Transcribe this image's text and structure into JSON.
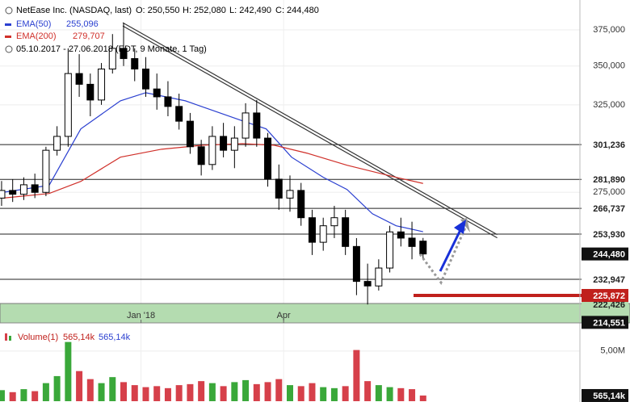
{
  "chart_data": [
    {
      "type": "candlestick",
      "title": "NetEase Inc. (NASDAQ, last)",
      "header_values": [
        "O: 250,550",
        "H: 252,080",
        "L: 242,490",
        "C: 244,480"
      ],
      "date_range": "05.10.2017 - 27.06.2018 (EDT, 9 Monate, 1 Tag)",
      "x": [
        0,
        7,
        14,
        21,
        28,
        35,
        42,
        49,
        56,
        63,
        70,
        77,
        84,
        91,
        98,
        105,
        112,
        119,
        126,
        133,
        140,
        147,
        154,
        161,
        168,
        175,
        182,
        189,
        196,
        203,
        210,
        217,
        224,
        231,
        238,
        245,
        252,
        259,
        266
      ],
      "open": [
        272000,
        276000,
        274000,
        279000,
        275000,
        298000,
        306000,
        345000,
        338000,
        328000,
        348000,
        362000,
        355000,
        348000,
        335000,
        330000,
        324000,
        315000,
        300000,
        290000,
        306000,
        298000,
        305000,
        320000,
        305000,
        282000,
        272000,
        276000,
        262000,
        250000,
        258000,
        262000,
        248000,
        232000,
        230000,
        238000,
        255000,
        252000,
        250550
      ],
      "high": [
        281000,
        282000,
        283000,
        285000,
        300000,
        312000,
        362000,
        358000,
        345000,
        352000,
        372000,
        380000,
        362000,
        356000,
        345000,
        340000,
        332000,
        320000,
        304000,
        312000,
        314000,
        312000,
        326000,
        328000,
        308000,
        290000,
        284000,
        280000,
        266000,
        262000,
        268000,
        266000,
        252000,
        240000,
        242000,
        258000,
        262000,
        260000,
        252080
      ],
      "low": [
        268000,
        270000,
        271000,
        272000,
        273000,
        295000,
        300000,
        330000,
        318000,
        325000,
        345000,
        350000,
        340000,
        330000,
        322000,
        318000,
        310000,
        296000,
        284000,
        287000,
        294000,
        288000,
        300000,
        300000,
        278000,
        266000,
        265000,
        258000,
        244000,
        246000,
        252000,
        244000,
        226000,
        222000,
        228000,
        236000,
        248000,
        242000,
        242490
      ],
      "close": [
        276000,
        274000,
        279000,
        275000,
        298000,
        306000,
        345000,
        338000,
        328000,
        348000,
        362000,
        355000,
        348000,
        335000,
        330000,
        324000,
        315000,
        300000,
        290000,
        306000,
        298000,
        305000,
        320000,
        305000,
        282000,
        272000,
        276000,
        262000,
        250000,
        258000,
        262000,
        248000,
        232000,
        230000,
        238000,
        255000,
        252000,
        248000,
        244480
      ],
      "up_color": "#ffffff",
      "down_color": "#000000",
      "xlim": [
        -1,
        365
      ],
      "xticks": [
        {
          "value": 88,
          "label": "Jan '18"
        },
        {
          "value": 178,
          "label": "Apr"
        }
      ],
      "ylim": [
        215000,
        397000
      ],
      "log_scale": true,
      "grid": true,
      "yticks": [
        {
          "value": 275000,
          "label": "275,000"
        },
        {
          "value": 325000,
          "label": "325,000"
        },
        {
          "value": 350000,
          "label": "350,000"
        },
        {
          "value": 375000,
          "label": "375,000"
        }
      ],
      "series": [
        {
          "name": "EMA(50)",
          "value_label": "255,096",
          "color": "#2a3fd0",
          "x": [
            1,
            30,
            50,
            75,
            91,
            116,
            152,
            167,
            183,
            203,
            218,
            234,
            249,
            266
          ],
          "values": [
            275000,
            278700,
            310400,
            327500,
            332600,
            327500,
            315200,
            310400,
            294100,
            283000,
            276500,
            264000,
            258000,
            255096
          ]
        },
        {
          "name": "EMA(200)",
          "value_label": "279,707",
          "color": "#d0302a",
          "x": [
            1,
            30,
            50,
            75,
            101,
            127,
            152,
            172,
            193,
            218,
            249,
            266
          ],
          "values": [
            272000,
            274400,
            280800,
            294100,
            298600,
            300900,
            301800,
            300900,
            296300,
            289600,
            283000,
            279707
          ]
        }
      ],
      "levels": [
        {
          "value": 301236,
          "label": "301,236"
        },
        {
          "value": 281890,
          "label": "281,890"
        },
        {
          "value": 266737,
          "label": "266,737"
        },
        {
          "value": 253930,
          "label": "253,930"
        },
        {
          "value": 232947,
          "label": "232,947"
        }
      ],
      "price_label": {
        "value": 244480,
        "label": "244,480"
      },
      "support_level": {
        "value": 225872,
        "label": "225,872",
        "color": "#c0201c"
      },
      "zone": {
        "value": 222426,
        "label": "222,426",
        "color": "#b4dcb0"
      },
      "bottom_label": {
        "value": 214551,
        "label": "214,551"
      },
      "trendline": {
        "x": [
          76.5,
          312.8
        ],
        "values": [
          379000,
          252900
        ]
      }
    },
    {
      "type": "bar",
      "title": "Volume(1)",
      "legend_values": [
        "565,14k",
        "565,14k"
      ],
      "x": [
        0,
        7,
        14,
        21,
        28,
        35,
        42,
        49,
        56,
        63,
        70,
        77,
        84,
        91,
        98,
        105,
        112,
        119,
        126,
        133,
        140,
        147,
        154,
        161,
        168,
        175,
        182,
        189,
        196,
        203,
        210,
        217,
        224,
        231,
        238,
        245,
        252,
        259,
        266
      ],
      "values": [
        1100000,
        900000,
        1200000,
        1000000,
        1800000,
        2500000,
        5900000,
        3000000,
        2200000,
        1800000,
        2400000,
        1900000,
        1600000,
        1400000,
        1500000,
        1300000,
        1600000,
        1700000,
        2000000,
        1800000,
        1500000,
        1900000,
        2100000,
        1700000,
        1900000,
        2200000,
        1600000,
        1500000,
        1800000,
        1400000,
        1300000,
        1500000,
        5100000,
        2000000,
        1600000,
        1400000,
        1300000,
        1200000,
        565140
      ],
      "up_color": "#3aa83a",
      "down_color": "#d6404a",
      "ylim": [
        0,
        7400000
      ],
      "yticks": [
        {
          "value": 5000000,
          "label": "5,00M"
        }
      ],
      "last_label": {
        "value": 565140,
        "label": "565,14k"
      }
    }
  ]
}
